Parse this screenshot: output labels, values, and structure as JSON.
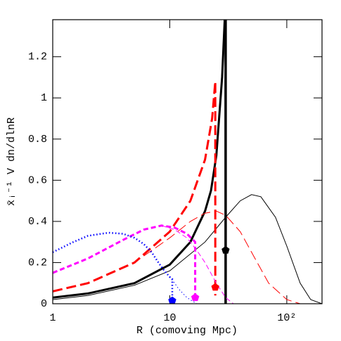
{
  "chart_data": {
    "type": "line",
    "xlabel": "R (comoving Mpc)",
    "ylabel": "x̄ᵢ⁻¹ V dn/dlnR",
    "xlog": true,
    "xlim": [
      1,
      200
    ],
    "ylim": [
      0,
      1.38
    ],
    "xticks": [
      1,
      10,
      {
        "value": 100,
        "label": "10²"
      }
    ],
    "yticks": [
      0,
      0.2,
      0.4,
      0.6,
      0.8,
      1,
      1.2
    ],
    "series": [
      {
        "color": "#000000",
        "style": "solid",
        "width": 3,
        "x": [
          1,
          2,
          5,
          10,
          15,
          20,
          22.5,
          25,
          28,
          29.5
        ],
        "values": [
          0.03,
          0.05,
          0.1,
          0.19,
          0.3,
          0.45,
          0.55,
          0.72,
          1.1,
          1.38
        ]
      },
      {
        "color": "#000000",
        "style": "solid",
        "width": 3.5,
        "x": [
          30,
          30
        ],
        "values": [
          0,
          1.38
        ]
      },
      {
        "color": "#000000",
        "style": "solid",
        "width": 1,
        "x": [
          1,
          2,
          5,
          10,
          20,
          30,
          40,
          50,
          60,
          80,
          100,
          130,
          160,
          200
        ],
        "values": [
          0.02,
          0.04,
          0.09,
          0.16,
          0.3,
          0.42,
          0.5,
          0.53,
          0.52,
          0.42,
          0.28,
          0.1,
          0.02,
          0
        ]
      },
      {
        "color": "#ff0000",
        "style": "longdash",
        "width": 3,
        "x": [
          1,
          2,
          5,
          10,
          15,
          20,
          23,
          24.5,
          24.5
        ],
        "values": [
          0.06,
          0.1,
          0.2,
          0.35,
          0.5,
          0.7,
          0.9,
          1.08,
          0.04
        ]
      },
      {
        "color": "#ff0000",
        "style": "longdash",
        "width": 1,
        "x": [
          1,
          2,
          5,
          10,
          15,
          20,
          25,
          30,
          40,
          50,
          70,
          100,
          130
        ],
        "values": [
          0.06,
          0.1,
          0.2,
          0.32,
          0.4,
          0.44,
          0.45,
          0.43,
          0.35,
          0.25,
          0.1,
          0.02,
          0
        ]
      },
      {
        "color": "#ff00ff",
        "style": "shortdash",
        "width": 3,
        "x": [
          1,
          2,
          4,
          6,
          8.5,
          11,
          14,
          16.5,
          16.5
        ],
        "values": [
          0.15,
          0.22,
          0.31,
          0.36,
          0.38,
          0.37,
          0.34,
          0.3,
          0.03
        ]
      },
      {
        "color": "#ff00ff",
        "style": "shortdash",
        "width": 1,
        "x": [
          8.5,
          11,
          14,
          17,
          20,
          25,
          30,
          35
        ],
        "values": [
          0.38,
          0.36,
          0.32,
          0.26,
          0.2,
          0.1,
          0.03,
          0
        ]
      },
      {
        "color": "#0000ff",
        "style": "dotted",
        "width": 2.5,
        "x": [
          1,
          1.5,
          2,
          3,
          4,
          5,
          6,
          7,
          8,
          9,
          10,
          10.5,
          10.5
        ],
        "values": [
          0.25,
          0.3,
          0.33,
          0.345,
          0.34,
          0.32,
          0.29,
          0.25,
          0.2,
          0.16,
          0.13,
          0.12,
          0.015
        ]
      },
      {
        "color": "#0000ff",
        "style": "dotted",
        "width": 1,
        "x": [
          10,
          11,
          12,
          14,
          17
        ],
        "values": [
          0.13,
          0.1,
          0.07,
          0.03,
          0
        ]
      }
    ],
    "markers": [
      {
        "color": "#000000",
        "x": 30,
        "y": 0.26
      },
      {
        "color": "#ff0000",
        "x": 24.5,
        "y": 0.08
      },
      {
        "color": "#ff00ff",
        "x": 16.5,
        "y": 0.03
      },
      {
        "color": "#0000ff",
        "x": 10.5,
        "y": 0.015
      }
    ]
  }
}
